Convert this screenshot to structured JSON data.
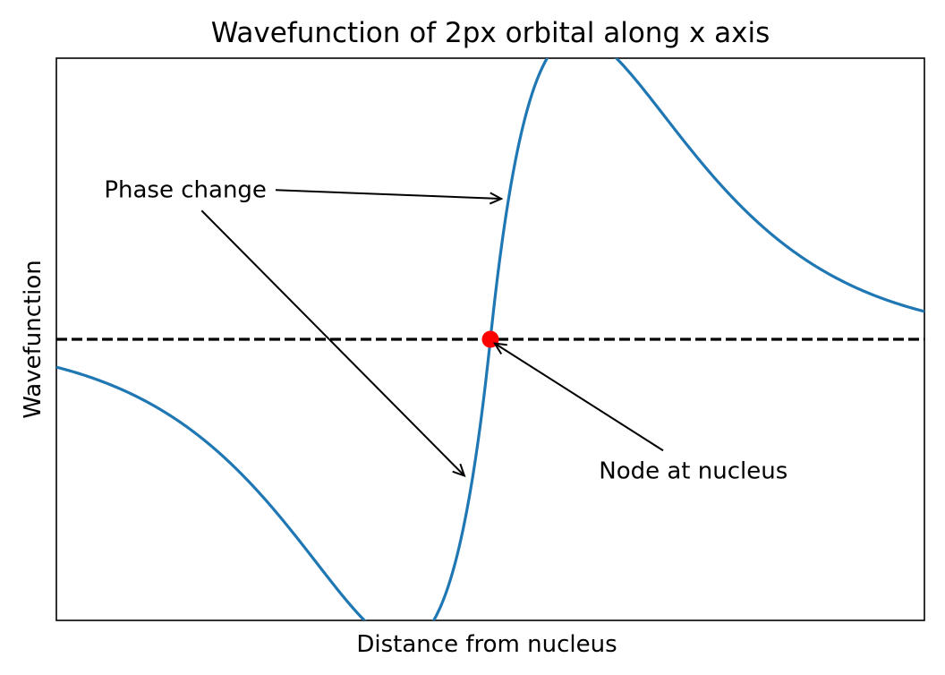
{
  "chart_data": {
    "type": "line",
    "title": "Wavefunction of 2px orbital along x axis",
    "xlabel": "Distance from nucleus",
    "ylabel": "Wavefunction",
    "xlim": [
      -10,
      10
    ],
    "ylim": [
      -0.68,
      0.68
    ],
    "xticks_visible": false,
    "yticks_visible": false,
    "grid": false,
    "legend": "none",
    "series": [
      {
        "function": "x * exp(-|x| / 2)",
        "x_range": [
          -10,
          10
        ],
        "color": "#1f77b4"
      }
    ],
    "reference_line": {
      "y": 0,
      "style": "dashed",
      "color": "#000000"
    },
    "points": [
      {
        "x": 0,
        "y": 0,
        "color": "#ff0000"
      }
    ],
    "annotations": [
      {
        "text": "Phase change",
        "text_position": [
          -8.9,
          0.36
        ],
        "arrow_targets": [
          [
            0.25,
            0.34
          ],
          [
            -0.6,
            -0.33
          ]
        ]
      },
      {
        "text": "Node at nucleus",
        "text_position": [
          2.5,
          -0.32
        ],
        "arrow_targets": [
          [
            0.1,
            -0.01
          ]
        ]
      }
    ]
  }
}
